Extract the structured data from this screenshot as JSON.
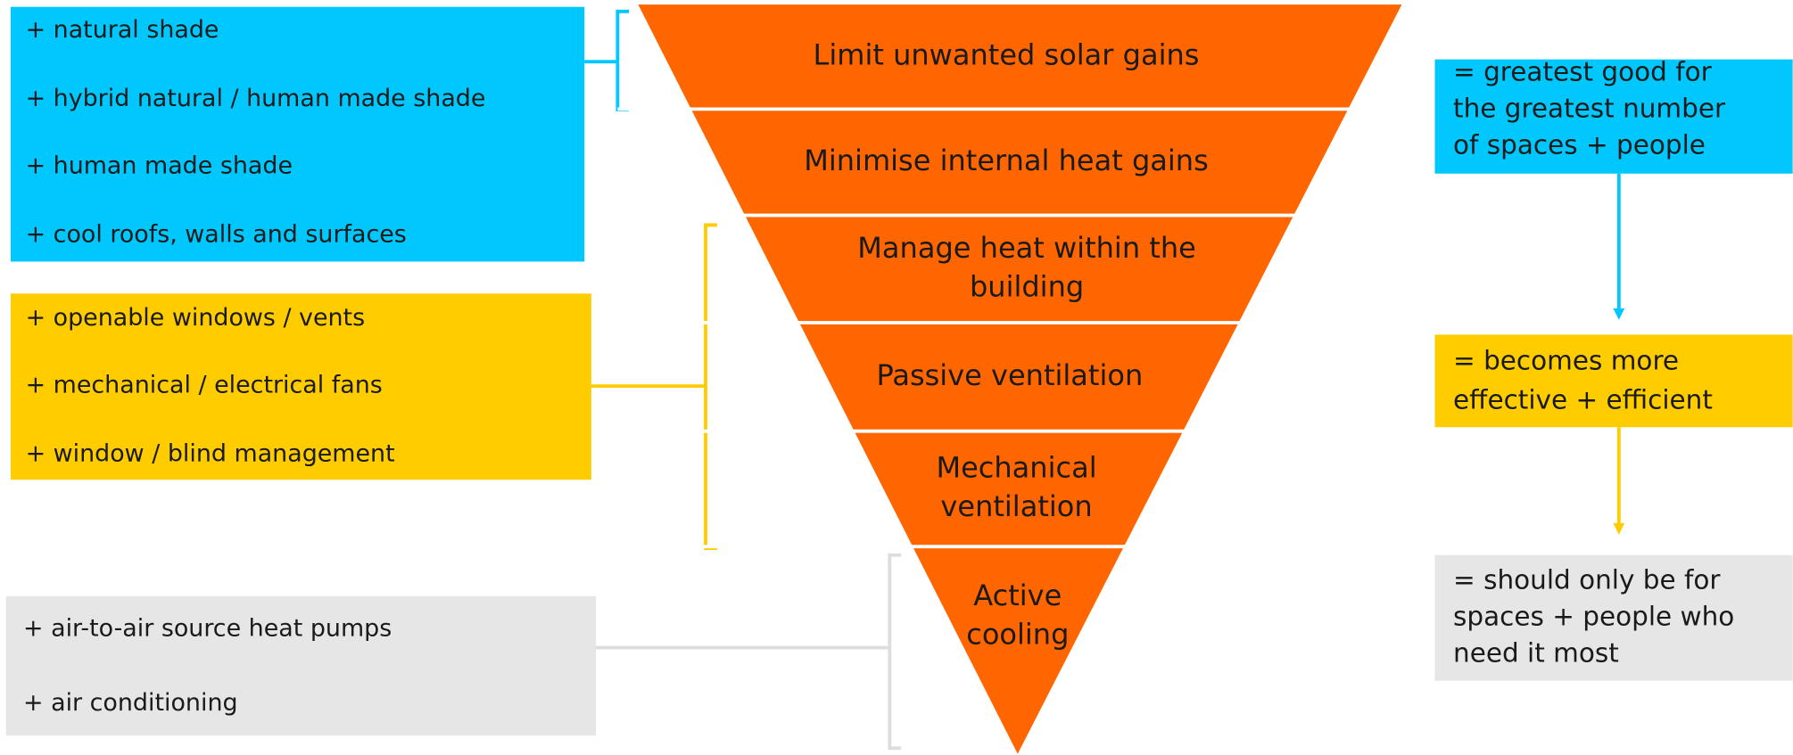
{
  "pyramid": {
    "levels": [
      [
        "Limit unwanted solar gains"
      ],
      [
        "Minimise internal heat gains"
      ],
      [
        "Manage heat within the",
        "building"
      ],
      [
        "Passive ventilation"
      ],
      [
        "Mechanical",
        "ventilation"
      ],
      [
        "Active",
        "cooling"
      ]
    ]
  },
  "groups": [
    {
      "items": [
        "+ natural shade",
        "+ hybrid natural / human made shade",
        "+ human made shade",
        "+ cool roofs, walls and surfaces"
      ]
    },
    {
      "items": [
        "+ openable windows / vents",
        "+ mechanical / electrical fans",
        "+ window / blind management"
      ]
    },
    {
      "items": [
        "+ air-to-air source heat pumps",
        "+ air conditioning"
      ]
    }
  ],
  "notes": [
    {
      "lines": [
        "= greatest good for",
        "the greatest number",
        "of spaces + people"
      ]
    },
    {
      "lines": [
        "= becomes more",
        "effective + efficient"
      ]
    },
    {
      "lines": [
        "= should only be for",
        "spaces + people who",
        "need it most"
      ]
    }
  ]
}
